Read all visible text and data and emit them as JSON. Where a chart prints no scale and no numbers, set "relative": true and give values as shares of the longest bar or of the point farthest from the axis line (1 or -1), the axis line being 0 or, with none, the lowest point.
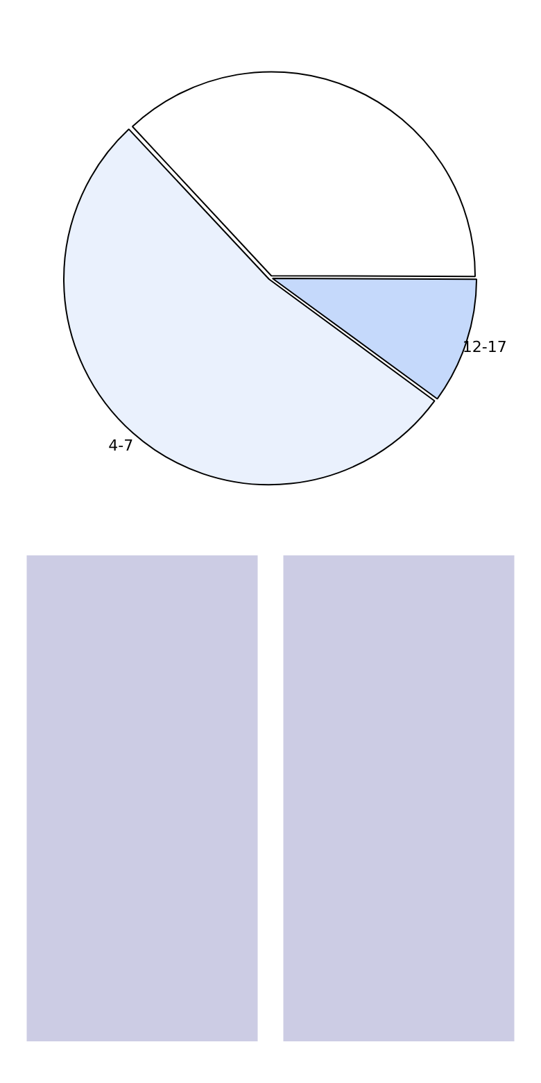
{
  "chart_data": [
    {
      "type": "pie",
      "categories": [
        null,
        "12-17",
        "4-7"
      ],
      "values": [
        37,
        10,
        53
      ],
      "colors": [
        "#ffffff",
        "#c5d9fb",
        "#eaf1fd"
      ]
    },
    {
      "type": "bar",
      "relative": true,
      "categories": [
        null,
        null
      ],
      "values": [
        1,
        1
      ],
      "color": "#cccce4"
    }
  ]
}
